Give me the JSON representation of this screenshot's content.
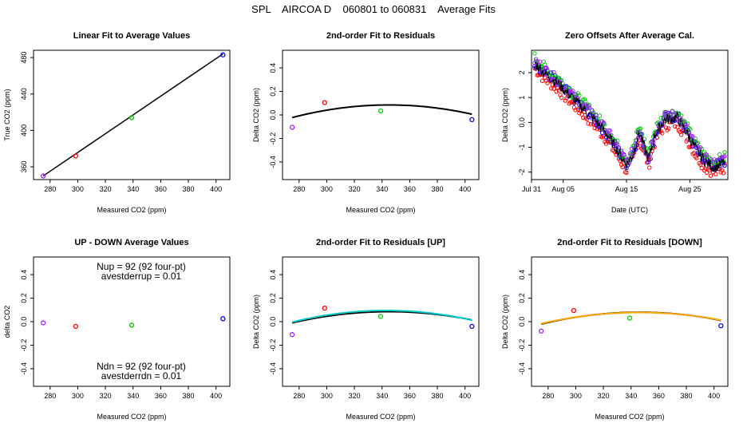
{
  "figure": {
    "title": "SPL    AIRCOA D    060801 to 060831    Average Fits"
  },
  "chart_data": [
    {
      "id": "p1",
      "type": "scatter",
      "title": "Linear Fit to Average Values",
      "xlabel": "Measured CO2 (ppm)",
      "ylabel": "True CO2 (ppm)",
      "xlim": [
        268,
        410
      ],
      "ylim": [
        346,
        488
      ],
      "xticks": [
        280,
        300,
        320,
        340,
        360,
        380,
        400
      ],
      "yticks": [
        360,
        400,
        440,
        480
      ],
      "points": [
        {
          "x": 275,
          "y": 350,
          "color": "#a020f0"
        },
        {
          "x": 298.5,
          "y": 372,
          "color": "#ff0000"
        },
        {
          "x": 339,
          "y": 414,
          "color": "#00cc00"
        },
        {
          "x": 405,
          "y": 483,
          "color": "#0000ff"
        }
      ],
      "lines": [
        {
          "color": "#000000",
          "points": [
            [
              275,
              350
            ],
            [
              405,
              484
            ]
          ]
        }
      ]
    },
    {
      "id": "p2",
      "type": "scatter",
      "title": "2nd-order Fit to Residuals",
      "xlabel": "Measured CO2 (ppm)",
      "ylabel": "Delta CO2 (ppm)",
      "xlim": [
        268,
        410
      ],
      "ylim": [
        -0.55,
        0.55
      ],
      "xticks": [
        280,
        300,
        320,
        340,
        360,
        380,
        400
      ],
      "yticks": [
        -0.4,
        -0.2,
        0.0,
        0.2,
        0.4
      ],
      "points": [
        {
          "x": 275,
          "y": -0.105,
          "color": "#a020f0"
        },
        {
          "x": 298.5,
          "y": 0.105,
          "color": "#ff0000"
        },
        {
          "x": 339,
          "y": 0.035,
          "color": "#00cc00"
        },
        {
          "x": 405,
          "y": -0.04,
          "color": "#0000ff"
        }
      ],
      "curves": [
        {
          "color": "#000000",
          "a": -2.19e-05,
          "vertex": 345,
          "peak": 0.085,
          "x0": 275,
          "x1": 405
        }
      ]
    },
    {
      "id": "p3",
      "type": "scatter",
      "title": "Zero Offsets After Average Cal.",
      "xlabel": "Date (UTC)",
      "ylabel": "Delta CO2 (ppm)",
      "xlim": [
        0,
        31
      ],
      "ylim": [
        -2.3,
        2.9
      ],
      "xticks": [
        0,
        5,
        15,
        25
      ],
      "xticklabels": [
        "Jul 31",
        "Aug 05",
        "Aug 15",
        "Aug 25"
      ],
      "yticks": [
        -2,
        -1,
        0,
        1,
        2
      ],
      "series": [
        {
          "color": "#000000",
          "offset": 0.0
        },
        {
          "color": "#0000ff",
          "offset": 0.05
        },
        {
          "color": "#00cc00",
          "offset": 0.2
        },
        {
          "color": "#ff0000",
          "offset": -0.22
        },
        {
          "color": "#a020f0",
          "offset": 0.1
        }
      ],
      "trend": [
        [
          0.5,
          2.4
        ],
        [
          2,
          2.0
        ],
        [
          4,
          1.6
        ],
        [
          6,
          1.1
        ],
        [
          8,
          0.6
        ],
        [
          10,
          0.1
        ],
        [
          12,
          -0.5
        ],
        [
          13.5,
          -1.1
        ],
        [
          15,
          -1.7
        ],
        [
          16,
          -1.3
        ],
        [
          17,
          -0.4
        ],
        [
          18.5,
          -1.5
        ],
        [
          19.5,
          -0.5
        ],
        [
          21,
          0.1
        ],
        [
          23,
          0.2
        ],
        [
          24.5,
          -0.4
        ],
        [
          26,
          -1.1
        ],
        [
          27.5,
          -1.6
        ],
        [
          29,
          -1.8
        ],
        [
          30.5,
          -1.6
        ]
      ]
    },
    {
      "id": "p4",
      "type": "scatter",
      "title": "UP - DOWN Average Values",
      "xlabel": "Measured CO2 (ppm)",
      "ylabel": "delta CO2",
      "xlim": [
        268,
        410
      ],
      "ylim": [
        -0.55,
        0.55
      ],
      "xticks": [
        280,
        300,
        320,
        340,
        360,
        380,
        400
      ],
      "yticks": [
        -0.4,
        -0.2,
        0.0,
        0.2,
        0.4
      ],
      "points": [
        {
          "x": 275,
          "y": -0.01,
          "color": "#a020f0"
        },
        {
          "x": 298.5,
          "y": -0.04,
          "color": "#ff0000"
        },
        {
          "x": 339,
          "y": -0.03,
          "color": "#00cc00"
        },
        {
          "x": 405,
          "y": 0.025,
          "color": "#0000ff"
        }
      ],
      "annotations": {
        "nup": "Nup = 92 (92 four-pt)",
        "avestderrup": "avestderrup =  0.01",
        "ndn": "Ndn = 92 (92 four-pt)",
        "avestderrdn": "avestderrdn =  0.01"
      }
    },
    {
      "id": "p5",
      "type": "scatter",
      "title": "2nd-order Fit to Residuals [UP]",
      "xlabel": "Measured CO2 (ppm)",
      "ylabel": "Delta CO2 (ppm)",
      "xlim": [
        268,
        410
      ],
      "ylim": [
        -0.55,
        0.55
      ],
      "xticks": [
        280,
        300,
        320,
        340,
        360,
        380,
        400
      ],
      "yticks": [
        -0.4,
        -0.2,
        0.0,
        0.2,
        0.4
      ],
      "points": [
        {
          "x": 275,
          "y": -0.11,
          "color": "#a020f0"
        },
        {
          "x": 298.5,
          "y": 0.115,
          "color": "#ff0000"
        },
        {
          "x": 339,
          "y": 0.045,
          "color": "#00cc00"
        },
        {
          "x": 405,
          "y": -0.04,
          "color": "#0000ff"
        }
      ],
      "curves": [
        {
          "color": "#000000",
          "a": -1.95e-05,
          "vertex": 345,
          "peak": 0.085,
          "x0": 275,
          "x1": 405
        },
        {
          "color": "#00cccc",
          "a": -2.14e-05,
          "vertex": 343,
          "peak": 0.095,
          "x0": 275,
          "x1": 405
        }
      ]
    },
    {
      "id": "p6",
      "type": "scatter",
      "title": "2nd-order Fit to Residuals [DOWN]",
      "xlabel": "Measured CO2 (ppm)",
      "ylabel": "Delta CO2 (ppm)",
      "xlim": [
        268,
        410
      ],
      "ylim": [
        -0.55,
        0.55
      ],
      "xticks": [
        280,
        300,
        320,
        340,
        360,
        380,
        400
      ],
      "yticks": [
        -0.4,
        -0.2,
        0.0,
        0.2,
        0.4
      ],
      "points": [
        {
          "x": 275,
          "y": -0.08,
          "color": "#a020f0"
        },
        {
          "x": 298.5,
          "y": 0.095,
          "color": "#ff0000"
        },
        {
          "x": 339,
          "y": 0.03,
          "color": "#00cc00"
        },
        {
          "x": 405,
          "y": -0.035,
          "color": "#0000ff"
        }
      ],
      "curves": [
        {
          "color": "#000000",
          "a": -2e-05,
          "vertex": 346,
          "peak": 0.08,
          "x0": 275,
          "x1": 405
        },
        {
          "color": "#ffa500",
          "a": -1.88e-05,
          "vertex": 346,
          "peak": 0.078,
          "x0": 275,
          "x1": 405
        }
      ]
    }
  ]
}
